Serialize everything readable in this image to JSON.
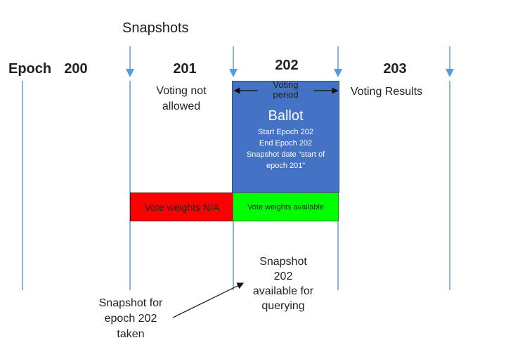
{
  "snapshots_label": "Snapshots",
  "epoch_label": "Epoch",
  "epochs": [
    "200",
    "201",
    "202",
    "203"
  ],
  "voting_not_allowed": [
    "Voting not",
    "allowed"
  ],
  "voting_period": [
    "Voting",
    "period"
  ],
  "voting_results": "Voting Results",
  "ballot": {
    "title": "Ballot",
    "lines": [
      "Start Epoch 202",
      "End Epoch  202",
      "Snapshot date “start of",
      "epoch 201”"
    ]
  },
  "vote_weights_na": "Vote weights N/A",
  "vote_weights_available": "Vote weights available",
  "snapshot_taken": [
    "Snapshot for",
    "epoch 202",
    "taken"
  ],
  "snapshot_available": [
    "Snapshot",
    "202",
    "available for",
    "querying"
  ],
  "colors": {
    "timeline": "#5b9bd5",
    "ballot": "#4472c4",
    "na_bar": "#ff0000",
    "available_bar": "#00ff00"
  }
}
